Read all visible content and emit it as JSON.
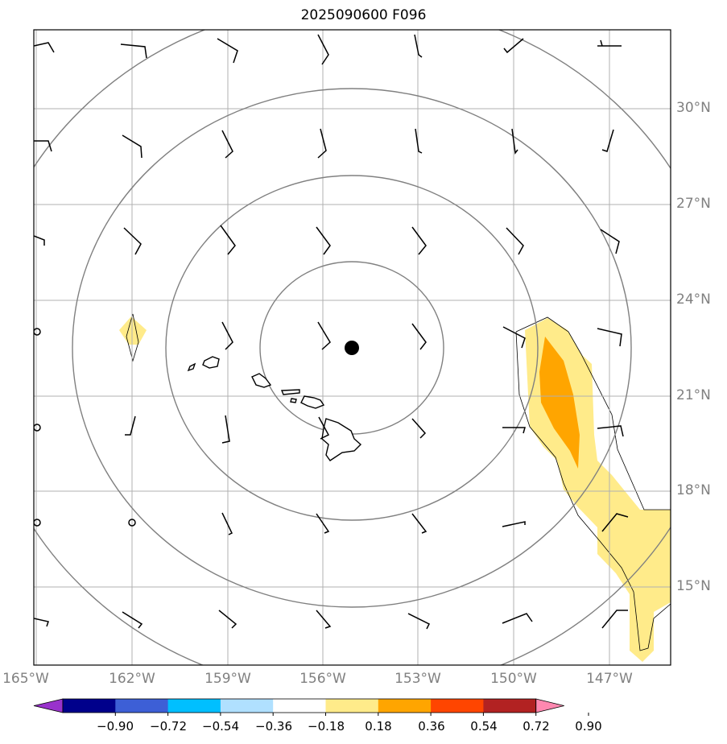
{
  "title": "2025090600 F096",
  "lon_labels": [
    "165°W",
    "162°W",
    "159°W",
    "156°W",
    "153°W",
    "150°W",
    "147°W"
  ],
  "lat_labels": [
    "30°N",
    "27°N",
    "24°N",
    "21°N",
    "18°N",
    "15°N"
  ],
  "colorbar": {
    "tick_labels": [
      "−0.90",
      "−0.72",
      "−0.54",
      "−0.36",
      "−0.18",
      "0.18",
      "0.36",
      "0.54",
      "0.72",
      "0.90"
    ],
    "colors": [
      "#9932cc",
      "#00008b",
      "#3d5fd6",
      "#00bfff",
      "#b0e0ff",
      "#ffffff",
      "#ffeb8a",
      "#ffa500",
      "#ff4500",
      "#b22222",
      "#ff88b0"
    ]
  },
  "colors": {
    "grid": "#b0b0b0",
    "contour": "#808080",
    "coast": "#000000",
    "field_low": "#ffeb8a",
    "field_high": "#ffa500"
  },
  "center_marker": "storm-center-dot",
  "chart_data": {
    "type": "map",
    "projection": "plate carree",
    "lon_range": [
      -165,
      -145
    ],
    "lat_range": [
      13,
      33
    ],
    "filled_contour_levels": [
      -0.9,
      -0.72,
      -0.54,
      -0.36,
      -0.18,
      0.18,
      0.36,
      0.54,
      0.72,
      0.9
    ],
    "center_point": {
      "lon": -155.1,
      "lat": 22.5
    },
    "range_rings_deg": [
      3,
      6,
      9,
      12
    ]
  }
}
